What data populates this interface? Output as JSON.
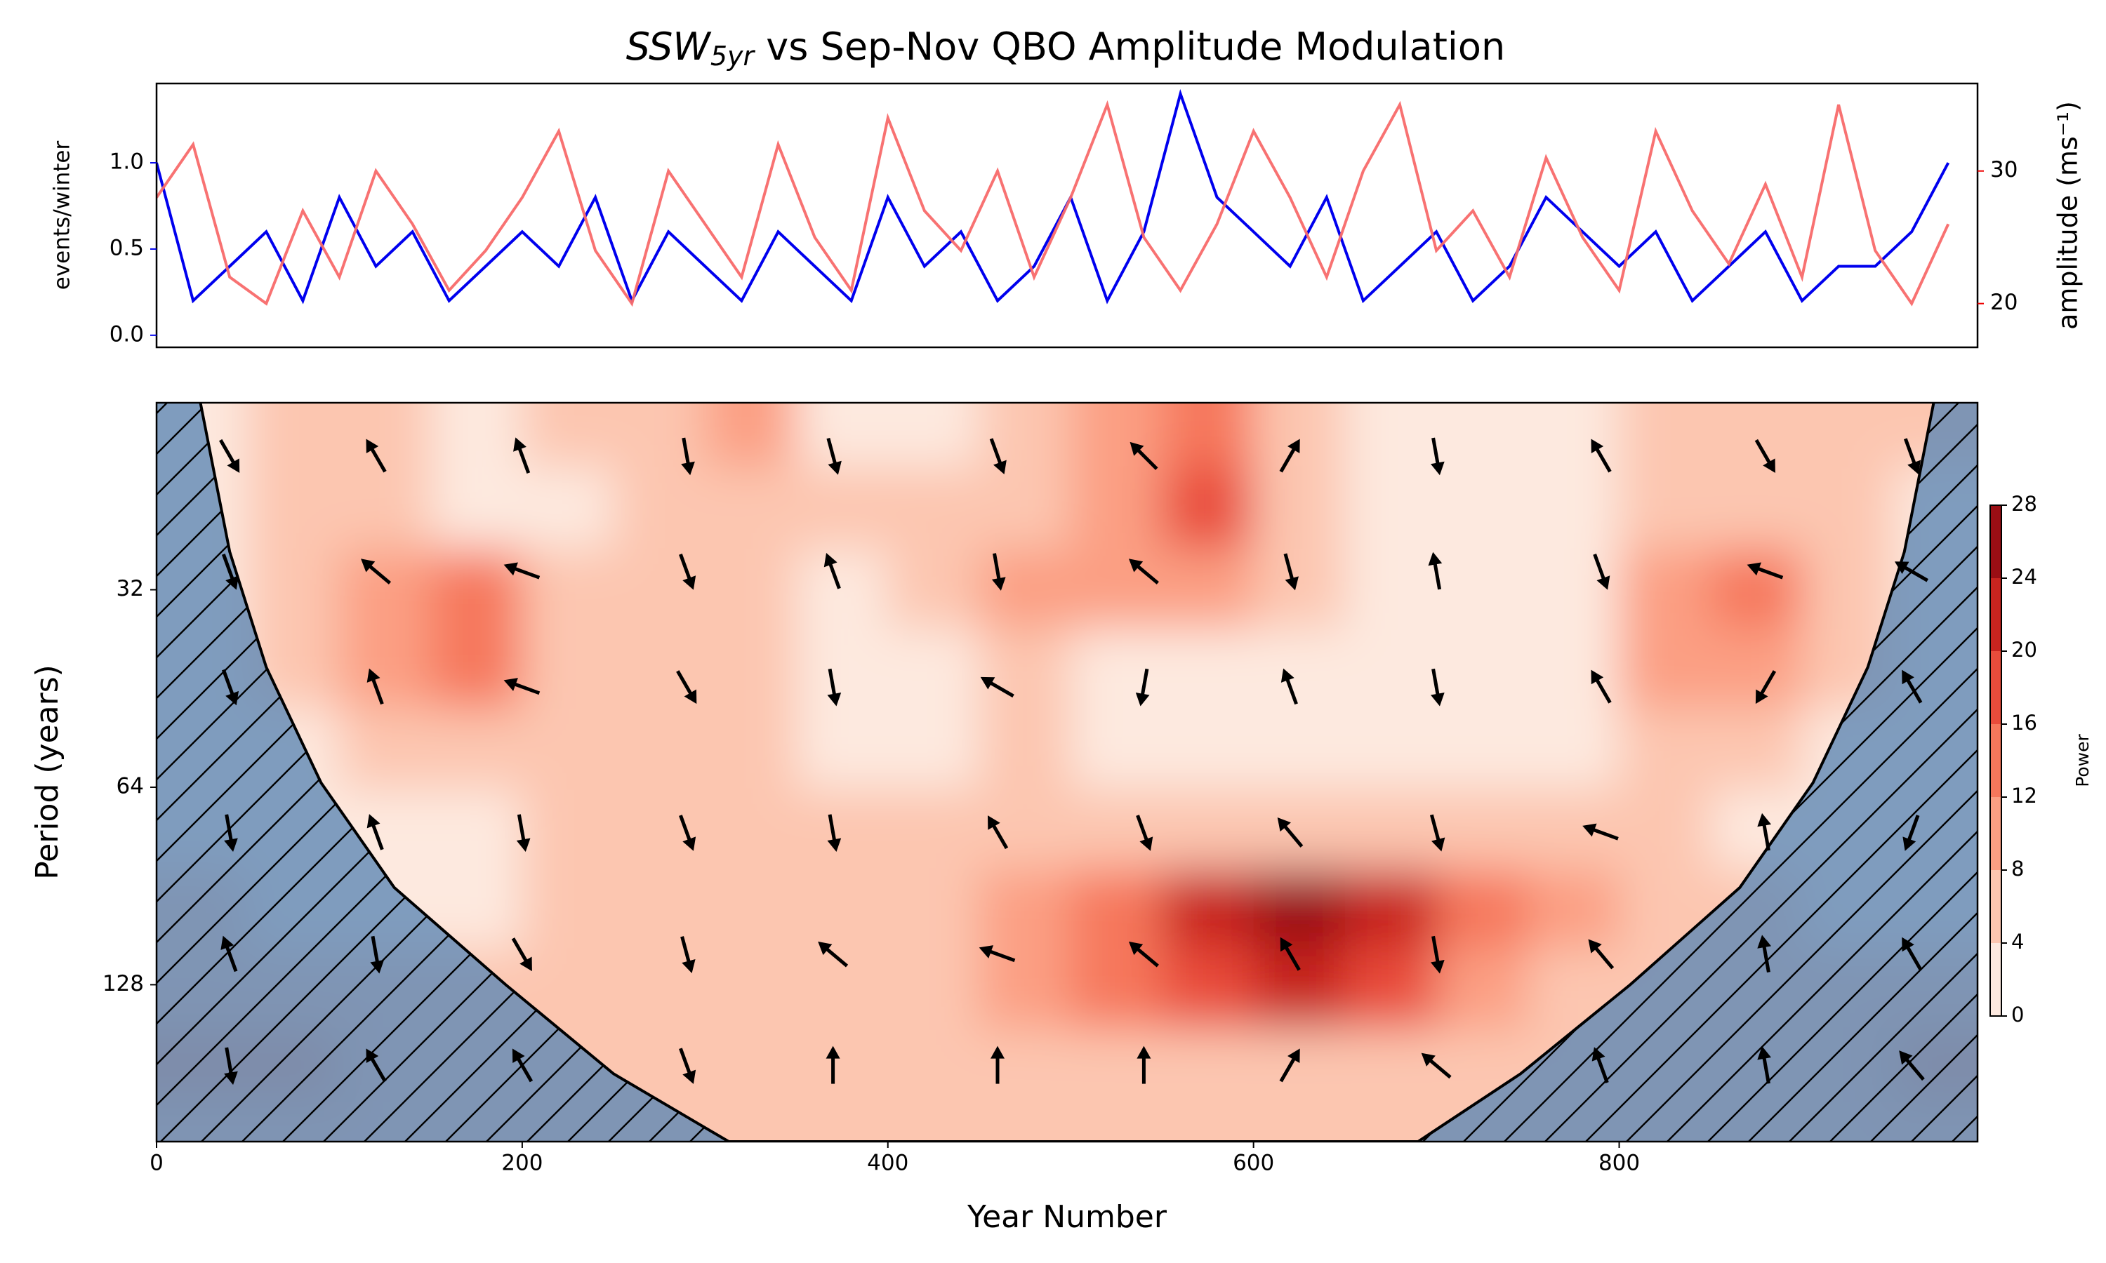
{
  "chart_data": [
    {
      "type": "line",
      "title": {
        "main": "SSW",
        "sub": "5yr",
        "rest": " vs Sep-Nov QBO Amplitude Modulation"
      },
      "ylabel": "events/winter",
      "y2label": "amplitude (ms⁻¹)",
      "xlim": [
        0,
        996
      ],
      "ylim": [
        -0.07,
        1.46
      ],
      "y2lim": [
        16.7,
        36.6
      ],
      "yticks": [
        {
          "value": 0,
          "label": "0.0"
        },
        0.5,
        {
          "value": 1,
          "label": "1.0"
        }
      ],
      "y2ticks": [
        20,
        30
      ],
      "x": [
        0,
        20,
        40,
        60,
        80,
        100,
        120,
        140,
        160,
        180,
        200,
        220,
        240,
        260,
        280,
        300,
        320,
        340,
        360,
        380,
        400,
        420,
        440,
        460,
        480,
        500,
        520,
        540,
        560,
        580,
        600,
        620,
        640,
        660,
        680,
        700,
        720,
        740,
        760,
        780,
        800,
        820,
        840,
        860,
        880,
        900,
        920,
        940,
        960,
        980
      ],
      "series": [
        {
          "name": "events/winter",
          "color": "#0000ee",
          "axis": "y",
          "values": [
            1.0,
            0.2,
            0.4,
            0.6,
            0.2,
            0.8,
            0.4,
            0.6,
            0.2,
            0.4,
            0.6,
            0.4,
            0.8,
            0.2,
            0.6,
            0.4,
            0.2,
            0.6,
            0.4,
            0.2,
            0.8,
            0.4,
            0.6,
            0.2,
            0.4,
            0.8,
            0.2,
            0.6,
            1.4,
            0.8,
            0.6,
            0.4,
            0.8,
            0.2,
            0.4,
            0.6,
            0.2,
            0.4,
            0.8,
            0.6,
            0.4,
            0.6,
            0.2,
            0.4,
            0.6,
            0.2,
            0.4,
            0.4,
            0.6,
            1.0
          ]
        },
        {
          "name": "amplitude",
          "color": "#f86a6a",
          "axis": "y2",
          "values": [
            28,
            32,
            22,
            20,
            27,
            22,
            30,
            26,
            21,
            24,
            28,
            33,
            24,
            20,
            30,
            26,
            22,
            32,
            25,
            21,
            34,
            27,
            24,
            30,
            22,
            28,
            35,
            25,
            21,
            26,
            33,
            28,
            22,
            30,
            35,
            24,
            27,
            22,
            31,
            25,
            21,
            33,
            27,
            23,
            29,
            22,
            35,
            24,
            20,
            26
          ]
        }
      ]
    },
    {
      "type": "contour",
      "xlabel": "Year Number",
      "ylabel": "Period (years)",
      "xlim": [
        0,
        996
      ],
      "xticks": [
        0,
        200,
        400,
        600,
        800
      ],
      "ylim": [
        16.6,
        222
      ],
      "yscale": "log2",
      "yticks": [
        32,
        64,
        128
      ],
      "x": [
        25,
        75,
        125,
        175,
        225,
        275,
        325,
        375,
        425,
        475,
        525,
        575,
        625,
        675,
        725,
        775,
        825,
        875,
        925,
        975
      ],
      "y": [
        18,
        24,
        32,
        42,
        56,
        74,
        98,
        130,
        172,
        215
      ],
      "z": [
        [
          3,
          6,
          4,
          3,
          4,
          5,
          8,
          3,
          2,
          6,
          8,
          12,
          4,
          2,
          3,
          3,
          4,
          4,
          5,
          4
        ],
        [
          3,
          5,
          4,
          3,
          3,
          6,
          6,
          5,
          4,
          5,
          9,
          16,
          6,
          3,
          3,
          3,
          5,
          5,
          4,
          3
        ],
        [
          3,
          4,
          8,
          12,
          6,
          4,
          4,
          3,
          4,
          8,
          8,
          9,
          5,
          3,
          3,
          3,
          10,
          14,
          6,
          3
        ],
        [
          2,
          4,
          10,
          14,
          7,
          4,
          4,
          3,
          3,
          4,
          3,
          3,
          3,
          3,
          3,
          3,
          8,
          9,
          4,
          3
        ],
        [
          2,
          3,
          5,
          6,
          5,
          6,
          5,
          3,
          3,
          4,
          3,
          3,
          3,
          3,
          3,
          3,
          4,
          4,
          3,
          2
        ],
        [
          3,
          3,
          3,
          3,
          4,
          6,
          6,
          5,
          6,
          6,
          5,
          6,
          6,
          6,
          5,
          5,
          4,
          3,
          3,
          3
        ],
        [
          4,
          3,
          3,
          3,
          4,
          5,
          6,
          4,
          4,
          8,
          14,
          20,
          24,
          20,
          14,
          8,
          6,
          4,
          3,
          3
        ],
        [
          6,
          6,
          5,
          4,
          4,
          5,
          5,
          4,
          4,
          8,
          14,
          18,
          20,
          16,
          10,
          7,
          6,
          5,
          5,
          6
        ],
        [
          8,
          8,
          7,
          5,
          4,
          4,
          5,
          4,
          4,
          5,
          6,
          6,
          6,
          5,
          4,
          4,
          5,
          6,
          7,
          8
        ],
        [
          6,
          6,
          5,
          4,
          4,
          4,
          4,
          4,
          4,
          4,
          5,
          5,
          5,
          4,
          4,
          4,
          4,
          5,
          6,
          6
        ]
      ],
      "levels": [
        0,
        4,
        8,
        12,
        16,
        20,
        24,
        28
      ],
      "level_colors": [
        "#fde9df",
        "#fcc6b0",
        "#fb9f83",
        "#f6775b",
        "#e94c3b",
        "#c8241f",
        "#9a0e14"
      ],
      "colorbar_label": "Power",
      "coi": {
        "color": "#5b87b5",
        "x": [
          24,
          40,
          60,
          90,
          130,
          191,
          250,
          313,
          690,
          746,
          806,
          866,
          906,
          936,
          956,
          972
        ],
        "period": [
          16.6,
          28,
          42,
          63,
          91,
          128,
          175,
          222,
          222,
          175,
          128,
          91,
          63,
          42,
          28,
          16.6
        ]
      },
      "arrows": {
        "x": [
          40,
          120,
          200,
          290,
          370,
          460,
          540,
          620,
          700,
          790,
          880,
          960
        ],
        "period": [
          20,
          30,
          45,
          75,
          115,
          170
        ],
        "angle": [
          [
            -60,
            120,
            110,
            -80,
            -75,
            -70,
            135,
            60,
            -80,
            120,
            -60,
            -70
          ],
          [
            -70,
            140,
            160,
            -70,
            110,
            -80,
            140,
            -75,
            100,
            -70,
            160,
            150
          ],
          [
            -70,
            110,
            160,
            -60,
            -80,
            150,
            -100,
            110,
            -80,
            120,
            -120,
            120
          ],
          [
            -80,
            110,
            -80,
            -70,
            -80,
            120,
            -70,
            130,
            -75,
            160,
            100,
            -110
          ],
          [
            110,
            -80,
            -60,
            -75,
            140,
            160,
            140,
            120,
            -80,
            130,
            100,
            120
          ],
          [
            -80,
            120,
            120,
            -70,
            90,
            90,
            90,
            60,
            140,
            110,
            100,
            130
          ]
        ]
      }
    }
  ]
}
